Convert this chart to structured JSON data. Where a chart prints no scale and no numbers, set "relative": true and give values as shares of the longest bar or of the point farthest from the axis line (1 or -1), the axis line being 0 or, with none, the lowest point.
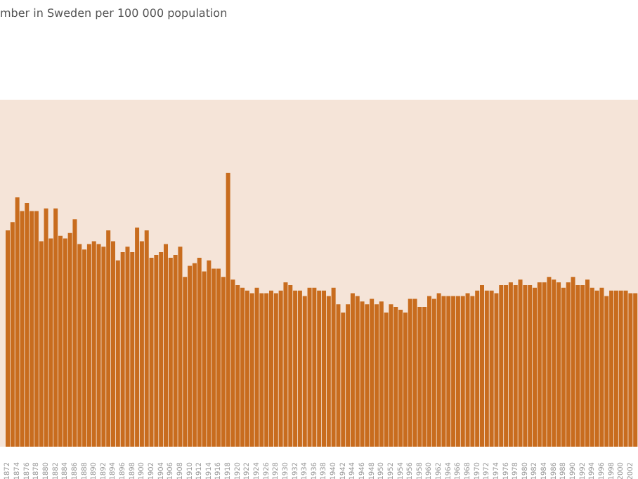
{
  "chart_data": {
    "type": "bar",
    "title": "mber in Sweden per 100 000 population",
    "relative": true,
    "categories": [
      "1872",
      null,
      "1874",
      null,
      "1876",
      null,
      "1878",
      null,
      "1880",
      null,
      "1882",
      null,
      "1884",
      null,
      "1886",
      null,
      "1888",
      null,
      "1890",
      null,
      "1892",
      null,
      "1894",
      null,
      "1896",
      null,
      "1898",
      null,
      "1900",
      null,
      "1902",
      null,
      "1904",
      null,
      "1906",
      null,
      "1908",
      null,
      "1910",
      null,
      "1912",
      null,
      "1914",
      null,
      "1916",
      null,
      "1918",
      null,
      "1920",
      null,
      "1922",
      null,
      "1924",
      null,
      "1926",
      null,
      "1928",
      null,
      "1930",
      null,
      "1932",
      null,
      "1934",
      null,
      "1936",
      null,
      "1938",
      null,
      "1940",
      null,
      "1942",
      null,
      "1944",
      null,
      "1946",
      null,
      "1948",
      null,
      "1950",
      null,
      "1952",
      null,
      "1954",
      null,
      "1956",
      null,
      "1958",
      null,
      "1960",
      null,
      "1962",
      null,
      "1964",
      null,
      "1966",
      null,
      "1968",
      null,
      "1970",
      null,
      "1972",
      null,
      "1974",
      null,
      "1976",
      null,
      "1978",
      null,
      "1980",
      null,
      "1982",
      null,
      "1984",
      null,
      "1986",
      null,
      "1988",
      null,
      "1990",
      null,
      "1992",
      null,
      "1994",
      null,
      "1996",
      null,
      "1998",
      null,
      "2000",
      null,
      "2002",
      null
    ],
    "values": [
      0.79,
      0.82,
      0.91,
      0.86,
      0.89,
      0.86,
      0.86,
      0.75,
      0.87,
      0.76,
      0.87,
      0.77,
      0.76,
      0.78,
      0.83,
      0.74,
      0.72,
      0.74,
      0.75,
      0.74,
      0.73,
      0.79,
      0.75,
      0.68,
      0.71,
      0.73,
      0.71,
      0.8,
      0.75,
      0.79,
      0.69,
      0.7,
      0.71,
      0.74,
      0.69,
      0.7,
      0.73,
      0.62,
      0.66,
      0.67,
      0.69,
      0.64,
      0.68,
      0.65,
      0.65,
      0.62,
      1,
      0.61,
      0.59,
      0.58,
      0.57,
      0.56,
      0.58,
      0.56,
      0.56,
      0.57,
      0.56,
      0.57,
      0.6,
      0.59,
      0.57,
      0.57,
      0.55,
      0.58,
      0.58,
      0.57,
      0.57,
      0.55,
      0.58,
      0.52,
      0.49,
      0.52,
      0.56,
      0.55,
      0.53,
      0.52,
      0.54,
      0.52,
      0.53,
      0.49,
      0.52,
      0.51,
      0.5,
      0.49,
      0.54,
      0.54,
      0.51,
      0.51,
      0.55,
      0.54,
      0.56,
      0.55,
      0.55,
      0.55,
      0.55,
      0.55,
      0.56,
      0.55,
      0.57,
      0.59,
      0.57,
      0.57,
      0.56,
      0.59,
      0.59,
      0.6,
      0.59,
      0.61,
      0.59,
      0.59,
      0.58,
      0.6,
      0.6,
      0.62,
      0.61,
      0.6,
      0.58,
      0.6,
      0.62,
      0.59,
      0.59,
      0.61,
      0.58,
      0.57,
      0.58,
      0.55,
      0.57,
      0.57,
      0.57,
      0.57,
      0.56,
      0.56
    ],
    "color": "#c86c1e"
  }
}
